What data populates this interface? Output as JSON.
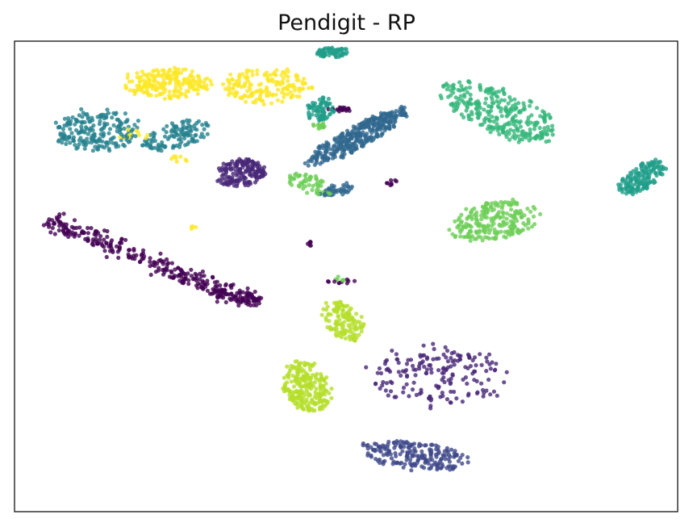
{
  "chart_data": {
    "type": "scatter",
    "title": "Pendigit - RP",
    "xlabel": "",
    "ylabel": "",
    "xlim": [
      -10,
      10
    ],
    "ylim": [
      -10,
      10
    ],
    "xticks": false,
    "yticks": false,
    "grid": false,
    "legend": "none",
    "colormap": "viridis",
    "series": [
      {
        "class": 0,
        "color": "#440154",
        "clusters": [
          {
            "polyline": [
              [
                -9.0,
                2.4
              ],
              [
                -7.2,
                1.4
              ],
              [
                -5.2,
                0.2
              ],
              [
                -3.8,
                -0.6
              ],
              [
                -2.6,
                -1.1
              ]
            ],
            "width": 0.35,
            "points": 340
          },
          {
            "center": [
              -0.2,
              7.1
            ],
            "rx": 0.35,
            "ry": 0.1,
            "points": 18
          },
          {
            "center": [
              -1.1,
              1.4
            ],
            "rx": 0.1,
            "ry": 0.1,
            "points": 6
          },
          {
            "center": [
              -0.2,
              -0.2
            ],
            "rx": 0.45,
            "ry": 0.1,
            "points": 10
          },
          {
            "center": [
              1.4,
              4.0
            ],
            "rx": 0.2,
            "ry": 0.15,
            "points": 8
          }
        ]
      },
      {
        "class": 1,
        "color": "#482878",
        "clusters": [
          {
            "center": [
              -3.2,
              4.4
            ],
            "rx": 0.8,
            "ry": 0.55,
            "angle": 20,
            "points": 170
          },
          {
            "center": [
              2.8,
              -4.2
            ],
            "rx": 2.1,
            "ry": 1.3,
            "angle": 0,
            "points": 180
          }
        ]
      },
      {
        "class": 2,
        "color": "#3e4989",
        "clusters": [
          {
            "center": [
              2.0,
              -7.6
            ],
            "rx": 1.6,
            "ry": 0.6,
            "angle": -10,
            "points": 200
          }
        ]
      },
      {
        "class": 3,
        "color": "#31688e",
        "clusters": [
          {
            "center": [
              0.3,
              5.9
            ],
            "rx": 1.9,
            "ry": 0.45,
            "angle": 38,
            "points": 360
          },
          {
            "center": [
              -0.3,
              3.7
            ],
            "rx": 0.5,
            "ry": 0.3,
            "angle": 20,
            "points": 40
          }
        ]
      },
      {
        "class": 4,
        "color": "#26828e",
        "clusters": [
          {
            "center": [
              -7.5,
              6.2
            ],
            "rx": 1.3,
            "ry": 0.9,
            "angle": 0,
            "points": 210
          },
          {
            "center": [
              -5.1,
              6.0
            ],
            "rx": 1.1,
            "ry": 0.5,
            "angle": 25,
            "points": 120
          }
        ]
      },
      {
        "class": 5,
        "color": "#1f9e89",
        "clusters": [
          {
            "center": [
              -0.4,
              9.5
            ],
            "rx": 0.55,
            "ry": 0.22,
            "angle": 0,
            "points": 60
          },
          {
            "center": [
              -0.8,
              7.1
            ],
            "rx": 0.45,
            "ry": 0.5,
            "angle": 0,
            "points": 75
          },
          {
            "center": [
              8.9,
              4.2
            ],
            "rx": 0.9,
            "ry": 0.45,
            "angle": 45,
            "points": 150
          }
        ]
      },
      {
        "class": 6,
        "color": "#35b779",
        "clusters": [
          {
            "center": [
              4.6,
              7.0
            ],
            "rx": 2.0,
            "ry": 0.9,
            "angle": -32,
            "points": 300
          }
        ]
      },
      {
        "class": 7,
        "color": "#6ece58",
        "clusters": [
          {
            "center": [
              4.5,
              2.4
            ],
            "rx": 1.4,
            "ry": 0.8,
            "angle": 15,
            "points": 230
          },
          {
            "center": [
              -1.1,
              3.9
            ],
            "rx": 0.8,
            "ry": 0.4,
            "angle": -30,
            "points": 60
          },
          {
            "center": [
              -0.8,
              6.4
            ],
            "rx": 0.2,
            "ry": 0.15,
            "angle": 0,
            "points": 14
          },
          {
            "center": [
              -0.2,
              -0.1
            ],
            "rx": 0.2,
            "ry": 0.1,
            "angle": 0,
            "points": 6
          }
        ]
      },
      {
        "class": 8,
        "color": "#b5de2b",
        "clusters": [
          {
            "center": [
              -1.2,
              -4.7
            ],
            "rx": 0.7,
            "ry": 1.1,
            "angle": 15,
            "points": 240
          },
          {
            "center": [
              -0.1,
              -1.9
            ],
            "rx": 0.55,
            "ry": 0.9,
            "angle": 25,
            "points": 130
          }
        ]
      },
      {
        "class": 9,
        "color": "#fde725",
        "clusters": [
          {
            "center": [
              -5.4,
              8.2
            ],
            "rx": 1.3,
            "ry": 0.65,
            "angle": 0,
            "points": 210
          },
          {
            "center": [
              -2.4,
              8.1
            ],
            "rx": 1.3,
            "ry": 0.75,
            "angle": 0,
            "points": 170
          },
          {
            "center": [
              -6.5,
              6.0
            ],
            "rx": 0.5,
            "ry": 0.25,
            "angle": 0,
            "points": 12
          },
          {
            "center": [
              -5.0,
              5.0
            ],
            "rx": 0.3,
            "ry": 0.2,
            "angle": 0,
            "points": 8
          },
          {
            "center": [
              -4.6,
              2.1
            ],
            "rx": 0.1,
            "ry": 0.1,
            "angle": 0,
            "points": 4
          }
        ]
      }
    ]
  }
}
